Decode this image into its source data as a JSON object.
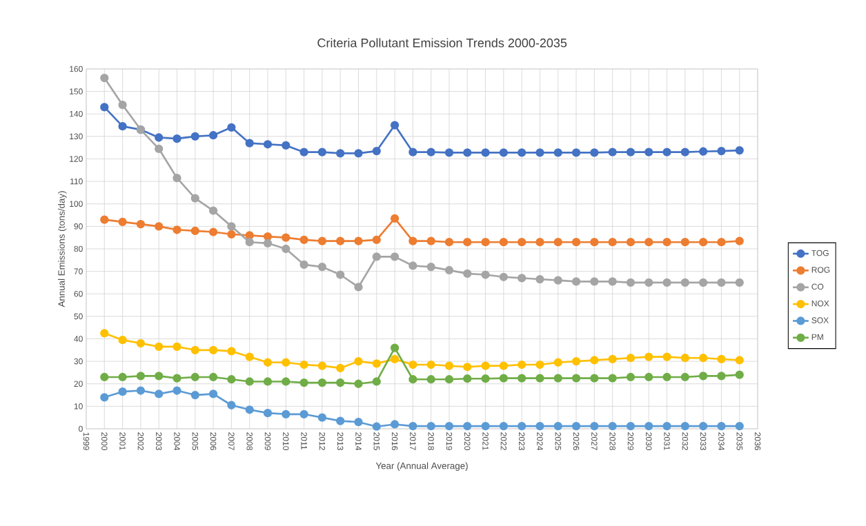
{
  "chart_data": {
    "type": "line",
    "title": "Criteria Pollutant Emission Trends 2000-2035",
    "xlabel": "Year (Annual Average)",
    "ylabel": "Annual Emissions (tons/day)",
    "x": [
      2000,
      2001,
      2002,
      2003,
      2004,
      2005,
      2006,
      2007,
      2008,
      2009,
      2010,
      2011,
      2012,
      2013,
      2014,
      2015,
      2016,
      2017,
      2018,
      2019,
      2020,
      2021,
      2022,
      2023,
      2024,
      2025,
      2026,
      2027,
      2028,
      2029,
      2030,
      2031,
      2032,
      2033,
      2034,
      2035
    ],
    "series": [
      {
        "name": "TOG",
        "color": "#4472c4",
        "values": [
          143,
          134.5,
          133,
          129.5,
          129,
          130,
          130.5,
          134,
          127,
          126.5,
          126,
          123,
          123,
          122.5,
          122.5,
          123.5,
          135,
          123,
          123,
          122.8,
          122.8,
          122.8,
          122.8,
          122.8,
          122.8,
          122.8,
          122.8,
          122.8,
          123,
          123,
          123,
          123,
          123,
          123.3,
          123.5,
          123.8
        ]
      },
      {
        "name": "ROG",
        "color": "#ed7d31",
        "values": [
          93,
          92,
          91,
          90,
          88.5,
          88,
          87.5,
          86.5,
          86,
          85.5,
          85,
          84,
          83.5,
          83.5,
          83.5,
          84,
          93.5,
          83.5,
          83.5,
          83,
          83,
          83,
          83,
          83,
          83,
          83,
          83,
          83,
          83,
          83,
          83,
          83,
          83,
          83,
          83,
          83.5
        ]
      },
      {
        "name": "CO",
        "color": "#a5a5a5",
        "values": [
          156,
          144,
          133,
          124.5,
          111.5,
          102.5,
          97,
          90,
          83,
          82.5,
          80,
          73,
          72,
          68.5,
          63,
          76.5,
          76.5,
          72.5,
          72,
          70.5,
          69,
          68.5,
          67.5,
          67,
          66.5,
          66,
          65.5,
          65.5,
          65.5,
          65,
          65,
          65,
          65,
          65,
          65,
          65
        ]
      },
      {
        "name": "NOX",
        "color": "#ffc000",
        "values": [
          42.5,
          39.5,
          38,
          36.5,
          36.5,
          35,
          35,
          34.5,
          32,
          29.5,
          29.5,
          28.5,
          28,
          27,
          30,
          29,
          31,
          28.5,
          28.5,
          28,
          27.5,
          28,
          28,
          28.5,
          28.5,
          29.5,
          30,
          30.5,
          31,
          31.5,
          32,
          32,
          31.5,
          31.5,
          31,
          30.5
        ]
      },
      {
        "name": "SOX",
        "color": "#5b9bd5",
        "values": [
          14,
          16.5,
          17,
          15.5,
          17,
          15,
          15.5,
          10.5,
          8.5,
          7,
          6.5,
          6.5,
          5,
          3.5,
          3,
          1,
          2,
          1.2,
          1.2,
          1.2,
          1.2,
          1.2,
          1.2,
          1.2,
          1.2,
          1.2,
          1.2,
          1.2,
          1.2,
          1.2,
          1.2,
          1.2,
          1.2,
          1.2,
          1.2,
          1.2
        ]
      },
      {
        "name": "PM",
        "color": "#70ad47",
        "values": [
          23,
          23,
          23.5,
          23.5,
          22.5,
          23,
          23,
          22,
          21,
          21,
          21,
          20.5,
          20.5,
          20.5,
          20,
          21,
          36,
          22,
          22,
          22,
          22.3,
          22.3,
          22.5,
          22.5,
          22.5,
          22.5,
          22.5,
          22.5,
          22.5,
          23,
          23,
          23,
          23,
          23.5,
          23.5,
          24
        ]
      }
    ],
    "xlim": [
      1999,
      2036
    ],
    "xticks": [
      1999,
      2000,
      2001,
      2002,
      2003,
      2004,
      2005,
      2006,
      2007,
      2008,
      2009,
      2010,
      2011,
      2012,
      2013,
      2014,
      2015,
      2016,
      2017,
      2018,
      2019,
      2020,
      2021,
      2022,
      2023,
      2024,
      2025,
      2026,
      2027,
      2028,
      2029,
      2030,
      2031,
      2032,
      2033,
      2034,
      2035,
      2036
    ],
    "ylim": [
      0,
      160
    ],
    "yticks": [
      0,
      10,
      20,
      30,
      40,
      50,
      60,
      70,
      80,
      90,
      100,
      110,
      120,
      130,
      140,
      150,
      160
    ],
    "grid": true,
    "legend": "right",
    "marker": "circle",
    "line_style": "solid"
  }
}
